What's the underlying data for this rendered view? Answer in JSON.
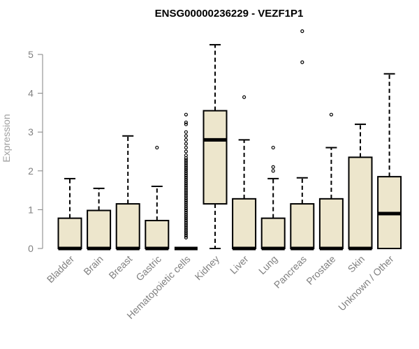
{
  "chart_data": {
    "type": "boxplot",
    "title": "ENSG00000236229 - VEZF1P1",
    "xlabel": "",
    "ylabel": "Expression",
    "ylim": [
      0,
      5.7
    ],
    "yticks": [
      0,
      1,
      2,
      3,
      4,
      5
    ],
    "grid": false,
    "legend": "none",
    "colors": {
      "box_fill": "#ede6cc",
      "stroke": "#000000",
      "axis": "#808080"
    },
    "categories": [
      "Bladder",
      "Brain",
      "Breast",
      "Gastric",
      "Hematopoietic cells",
      "Kidney",
      "Liver",
      "Lung",
      "Pancreas",
      "Prostate",
      "Skin",
      "Unknown / Other"
    ],
    "boxes": [
      {
        "label": "Bladder",
        "min": 0,
        "q1": 0,
        "median": 0,
        "q3": 0.78,
        "max": 1.8,
        "outliers": []
      },
      {
        "label": "Brain",
        "min": 0,
        "q1": 0,
        "median": 0,
        "q3": 0.98,
        "max": 1.55,
        "outliers": []
      },
      {
        "label": "Breast",
        "min": 0,
        "q1": 0,
        "median": 0,
        "q3": 1.15,
        "max": 2.9,
        "outliers": []
      },
      {
        "label": "Gastric",
        "min": 0,
        "q1": 0,
        "median": 0,
        "q3": 0.72,
        "max": 1.6,
        "outliers": [
          2.6
        ]
      },
      {
        "label": "Hematopoietic cells",
        "min": 0,
        "q1": 0,
        "median": 0,
        "q3": 0,
        "max": 0,
        "outliers": [
          0.28,
          0.33,
          0.38,
          0.43,
          0.48,
          0.53,
          0.58,
          0.63,
          0.68,
          0.73,
          0.78,
          0.83,
          0.88,
          0.93,
          0.98,
          1.03,
          1.08,
          1.13,
          1.18,
          1.23,
          1.28,
          1.33,
          1.38,
          1.43,
          1.48,
          1.53,
          1.58,
          1.63,
          1.68,
          1.73,
          1.78,
          1.83,
          1.88,
          1.93,
          1.98,
          2.03,
          2.08,
          2.13,
          2.18,
          2.23,
          2.28,
          2.33,
          2.4,
          2.5,
          2.6,
          2.7,
          2.8,
          2.9,
          3.0,
          3.2,
          3.25,
          3.45
        ]
      },
      {
        "label": "Kidney",
        "min": 0,
        "q1": 1.15,
        "median": 2.8,
        "q3": 3.55,
        "max": 5.25,
        "outliers": []
      },
      {
        "label": "Liver",
        "min": 0,
        "q1": 0,
        "median": 0,
        "q3": 1.28,
        "max": 2.8,
        "outliers": [
          3.9
        ]
      },
      {
        "label": "Lung",
        "min": 0,
        "q1": 0,
        "median": 0,
        "q3": 0.78,
        "max": 1.8,
        "outliers": [
          2.0,
          2.1,
          2.6
        ]
      },
      {
        "label": "Pancreas",
        "min": 0,
        "q1": 0,
        "median": 0,
        "q3": 1.15,
        "max": 1.82,
        "outliers": [
          4.8,
          5.6
        ]
      },
      {
        "label": "Prostate",
        "min": 0,
        "q1": 0,
        "median": 0,
        "q3": 1.28,
        "max": 2.6,
        "outliers": [
          3.45
        ]
      },
      {
        "label": "Skin",
        "min": 0,
        "q1": 0,
        "median": 0,
        "q3": 2.35,
        "max": 3.2,
        "outliers": []
      },
      {
        "label": "Unknown / Other",
        "min": 0,
        "q1": 0,
        "median": 0.9,
        "q3": 1.85,
        "max": 4.5,
        "outliers": []
      }
    ]
  }
}
